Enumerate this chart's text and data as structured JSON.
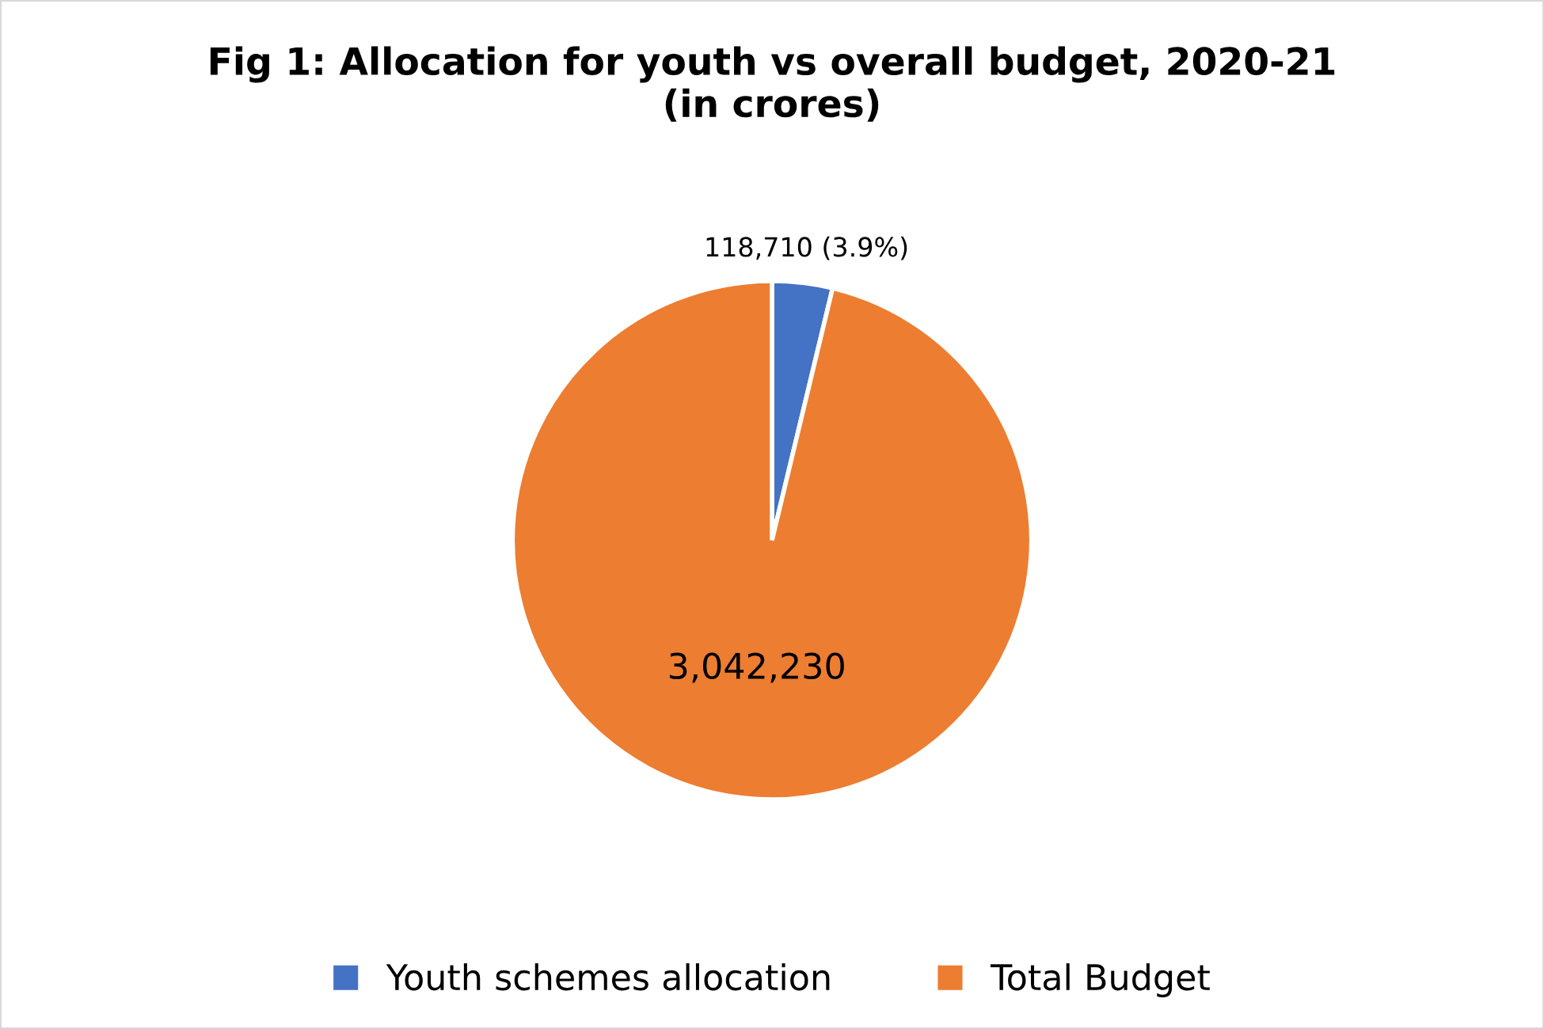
{
  "chart_data": {
    "type": "pie",
    "title": "Fig 1: Allocation for youth vs overall budget, 2020-21\n(in crores)",
    "categories": [
      "Youth schemes allocation",
      "Total Budget"
    ],
    "values": [
      118710,
      3042230
    ],
    "colors": [
      "#4472c4",
      "#ed7d31"
    ],
    "value_labels": [
      "118,710 (3.9%)",
      "3,042,230"
    ],
    "legend": "bottom"
  }
}
